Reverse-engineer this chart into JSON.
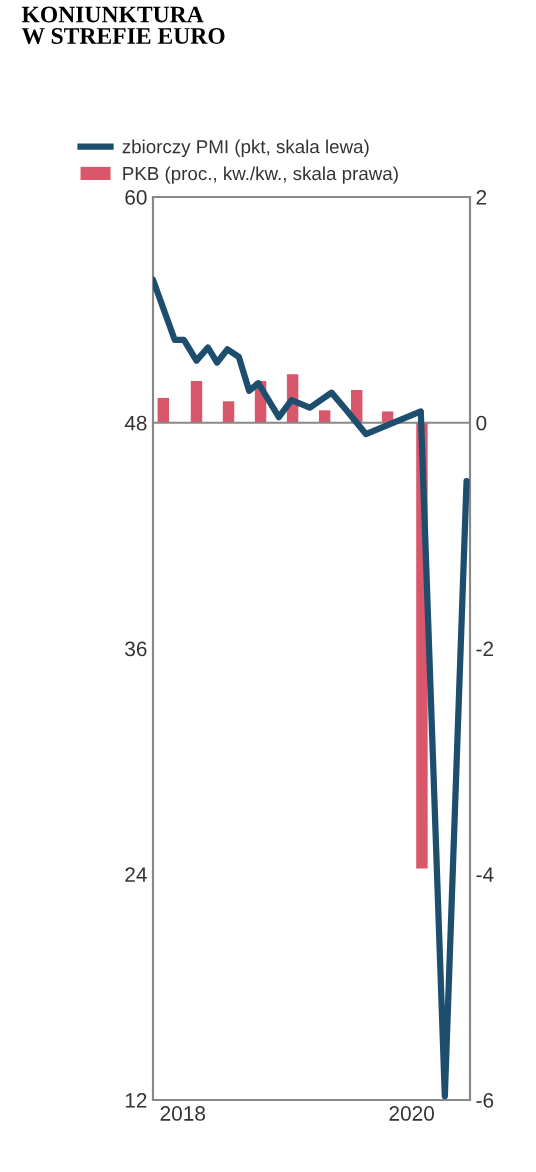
{
  "chart_data": {
    "type": "line",
    "title": "KONIUNKTURA\nW STREFIE EURO",
    "series": [
      {
        "name": "zbiorczy PMI (pkt, skala lewa)",
        "color": "#1d4e6e",
        "x": [
          2017.74,
          2017.93,
          2018.01,
          2018.12,
          2018.22,
          2018.3,
          2018.39,
          2018.49,
          2018.58,
          2018.66,
          2018.84,
          2018.95,
          2019.11,
          2019.3,
          2019.44,
          2019.6,
          2020.08,
          2020.29,
          2020.48
        ],
        "values": [
          55.6,
          52.4,
          52.4,
          51.3,
          52.0,
          51.2,
          51.9,
          51.5,
          49.7,
          50.1,
          48.3,
          49.2,
          48.8,
          49.6,
          48.6,
          47.4,
          48.6,
          12.2,
          44.9
        ]
      },
      {
        "name": "PKB (proc., kw./kw., skala prawa)",
        "type": "bar",
        "axis": "y2",
        "color": "#d9576a",
        "x": [
          2017.83,
          2018.12,
          2018.4,
          2018.68,
          2018.96,
          2019.24,
          2019.52,
          2019.79,
          2020.09
        ],
        "values": [
          0.22,
          0.37,
          0.19,
          0.37,
          0.43,
          0.11,
          0.29,
          0.1,
          -3.95
        ]
      }
    ],
    "xlim": [
      2017.74,
      2020.51
    ],
    "xticks": [
      2018,
      2020
    ],
    "ylim": [
      12,
      60
    ],
    "yticks": [
      12,
      24,
      36,
      48,
      60
    ],
    "y2lim": [
      -6,
      2
    ],
    "y2ticks": [
      -6,
      -4,
      -2,
      0,
      2
    ],
    "ref_lines": [
      {
        "axis": "y",
        "value": 48,
        "color": "#888888"
      }
    ],
    "legend": "top left",
    "grid": false
  }
}
